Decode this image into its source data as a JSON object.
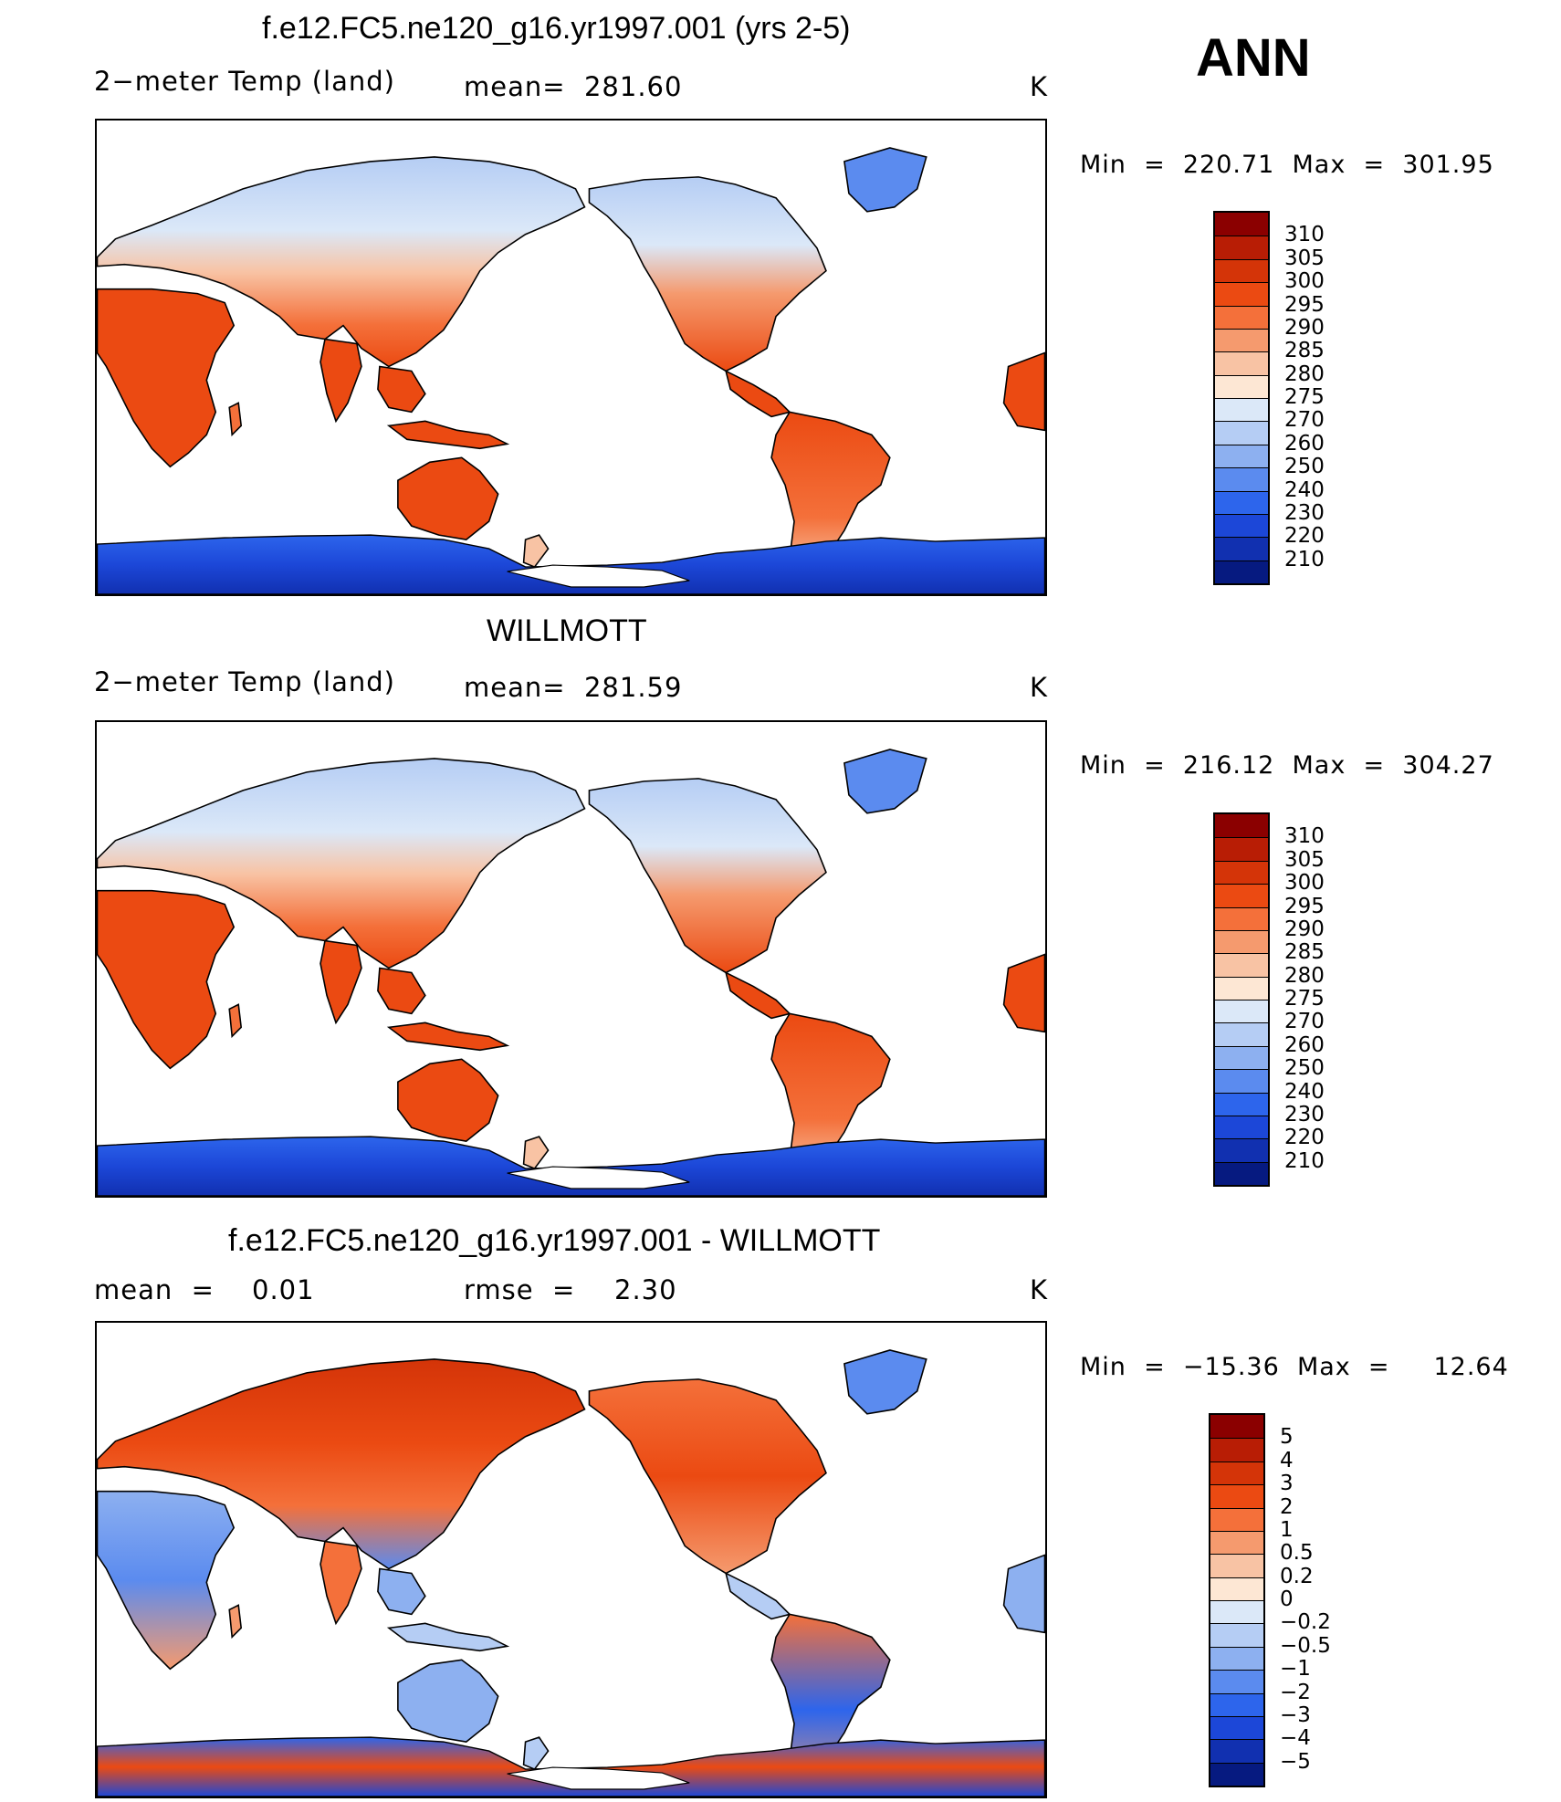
{
  "season": "ANN",
  "panels": [
    {
      "id": "model",
      "title": "f.e12.FC5.ne120_g16.yr1997.001 (yrs 2-5)",
      "left_label": "2−meter Temp (land)",
      "mid_label": "mean=  281.60",
      "units": "K",
      "minmax": "Min  =  220.71  Max  =  301.95",
      "levels": [
        "310",
        "305",
        "300",
        "295",
        "290",
        "285",
        "280",
        "275",
        "270",
        "260",
        "250",
        "240",
        "230",
        "220",
        "210"
      ],
      "colors": [
        "#8b0000",
        "#b81d05",
        "#d43408",
        "#eb4a12",
        "#f4703a",
        "#f59a6e",
        "#f8c3a4",
        "#fde7d4",
        "#dbe8f8",
        "#b5cdf4",
        "#8db0f0",
        "#5b8bef",
        "#2d65ec",
        "#1c47d8",
        "#1130b0",
        "#061a80"
      ]
    },
    {
      "id": "obs",
      "title": "WILLMOTT",
      "left_label": "2−meter Temp (land)",
      "mid_label": "mean=  281.59",
      "units": "K",
      "minmax": "Min  =  216.12  Max  =  304.27",
      "levels": [
        "310",
        "305",
        "300",
        "295",
        "290",
        "285",
        "280",
        "275",
        "270",
        "260",
        "250",
        "240",
        "230",
        "220",
        "210"
      ],
      "colors": [
        "#8b0000",
        "#b81d05",
        "#d43408",
        "#eb4a12",
        "#f4703a",
        "#f59a6e",
        "#f8c3a4",
        "#fde7d4",
        "#dbe8f8",
        "#b5cdf4",
        "#8db0f0",
        "#5b8bef",
        "#2d65ec",
        "#1c47d8",
        "#1130b0",
        "#061a80"
      ]
    },
    {
      "id": "diff",
      "title": "f.e12.FC5.ne120_g16.yr1997.001 - WILLMOTT",
      "left_label": "mean  =",
      "left_value": "0.01",
      "mid_label": "rmse  =",
      "mid_value": "2.30",
      "units": "K",
      "minmax": "Min  =  −15.36  Max  =     12.64",
      "levels": [
        "5",
        "4",
        "3",
        "2",
        "1",
        "0.5",
        "0.2",
        "0",
        "−0.2",
        "−0.5",
        "−1",
        "−2",
        "−3",
        "−4",
        "−5"
      ],
      "colors": [
        "#8b0000",
        "#b81d05",
        "#d43408",
        "#eb4a12",
        "#f4703a",
        "#f59a6e",
        "#f8c3a4",
        "#fde7d4",
        "#dbe8f8",
        "#b5cdf4",
        "#8db0f0",
        "#5b8bef",
        "#2d65ec",
        "#1c47d8",
        "#1130b0",
        "#061a80"
      ]
    }
  ],
  "chart_data": [
    {
      "type": "heatmap",
      "title": "f.e12.FC5.ne120_g16.yr1997.001 (yrs 2-5)",
      "variable": "2−meter Temp (land)",
      "mean": 281.6,
      "min": 220.71,
      "max": 301.95,
      "units": "K",
      "contour_levels": [
        210,
        220,
        230,
        240,
        250,
        260,
        270,
        275,
        280,
        285,
        290,
        295,
        300,
        305,
        310
      ]
    },
    {
      "type": "heatmap",
      "title": "WILLMOTT",
      "variable": "2−meter Temp (land)",
      "mean": 281.59,
      "min": 216.12,
      "max": 304.27,
      "units": "K",
      "contour_levels": [
        210,
        220,
        230,
        240,
        250,
        260,
        270,
        275,
        280,
        285,
        290,
        295,
        300,
        305,
        310
      ]
    },
    {
      "type": "heatmap",
      "title": "f.e12.FC5.ne120_g16.yr1997.001 - WILLMOTT",
      "mean": 0.01,
      "rmse": 2.3,
      "min": -15.36,
      "max": 12.64,
      "units": "K",
      "contour_levels": [
        -5,
        -4,
        -3,
        -2,
        -1,
        -0.5,
        -0.2,
        0,
        0.2,
        0.5,
        1,
        2,
        3,
        4,
        5
      ]
    }
  ]
}
